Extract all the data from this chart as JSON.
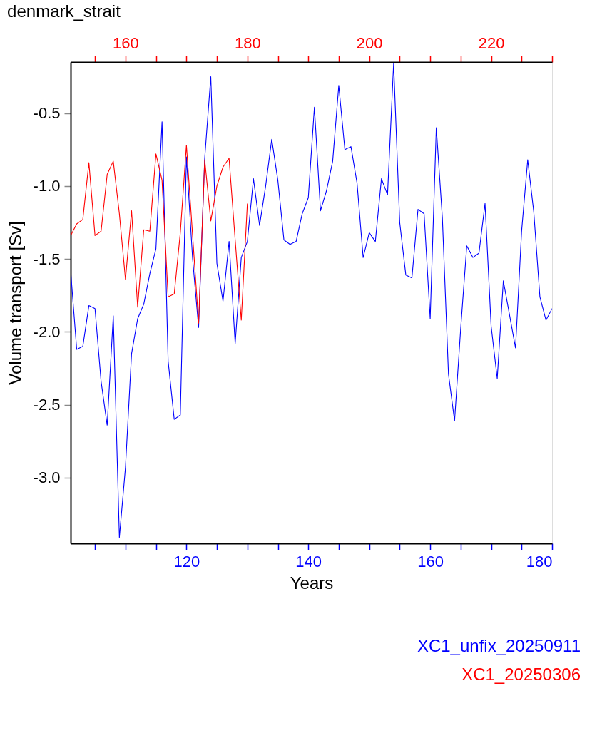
{
  "chart_data": {
    "type": "line",
    "title": "denmark_strait",
    "xlabel": "Years",
    "ylabel": "Volume transport [Sv]",
    "grid": false,
    "legend": "bottom right",
    "marker": "none",
    "line_style": "solid",
    "xlim": [
      101,
      180
    ],
    "xticks": [
      {
        "value": 105,
        "label": null
      },
      {
        "value": 110,
        "label": null
      },
      {
        "value": 115,
        "label": null
      },
      120,
      {
        "value": 125,
        "label": null
      },
      {
        "value": 130,
        "label": null
      },
      {
        "value": 135,
        "label": null
      },
      140,
      {
        "value": 145,
        "label": null
      },
      {
        "value": 150,
        "label": null
      },
      {
        "value": 155,
        "label": null
      },
      160,
      {
        "value": 165,
        "label": null
      },
      {
        "value": 170,
        "label": null
      },
      {
        "value": 175,
        "label": null
      },
      180
    ],
    "x2lim": [
      151,
      230
    ],
    "x2ticks": [
      {
        "value": 155,
        "label": null
      },
      160,
      {
        "value": 165,
        "label": null
      },
      {
        "value": 170,
        "label": null
      },
      {
        "value": 175,
        "label": null
      },
      180,
      {
        "value": 185,
        "label": null
      },
      {
        "value": 190,
        "label": null
      },
      {
        "value": 195,
        "label": null
      },
      200,
      {
        "value": 205,
        "label": null
      },
      {
        "value": 210,
        "label": null
      },
      {
        "value": 215,
        "label": null
      },
      220,
      {
        "value": 225,
        "label": null
      },
      {
        "value": 230,
        "label": null
      }
    ],
    "ylim": [
      -3.45,
      -0.15
    ],
    "yticks": [
      {
        "value": -3.0,
        "label": "-3.0"
      },
      {
        "value": -2.5,
        "label": "-2.5"
      },
      {
        "value": -2.0,
        "label": "-2.0"
      },
      {
        "value": -1.5,
        "label": "-1.5"
      },
      {
        "value": -1.0,
        "label": "-1.0"
      },
      {
        "value": -0.5,
        "label": "-0.5"
      }
    ],
    "series": [
      {
        "name": "XC1_unfix_20250911",
        "color": "#0000ff",
        "x": [
          101,
          102,
          103,
          104,
          105,
          106,
          107,
          108,
          109,
          110,
          111,
          112,
          113,
          114,
          115,
          116,
          117,
          118,
          119,
          120,
          121,
          122,
          123,
          124,
          125,
          126,
          127,
          128,
          129,
          130,
          131,
          132,
          133,
          134,
          135,
          136,
          137,
          138,
          139,
          140,
          141,
          142,
          143,
          144,
          145,
          146,
          147,
          148,
          149,
          150,
          151,
          152,
          153,
          154,
          155,
          156,
          157,
          158,
          159,
          160,
          161,
          162,
          163,
          164,
          165,
          166,
          167,
          168,
          169,
          170,
          171,
          172,
          173,
          174,
          175,
          176,
          177,
          178,
          179,
          180
        ],
        "values": [
          -1.58,
          -2.12,
          -2.1,
          -1.82,
          -1.84,
          -2.34,
          -2.64,
          -1.89,
          -3.41,
          -2.93,
          -2.15,
          -1.91,
          -1.81,
          -1.6,
          -1.43,
          -0.56,
          -2.2,
          -2.6,
          -2.57,
          -0.8,
          -1.49,
          -1.97,
          -0.81,
          -0.25,
          -1.53,
          -1.79,
          -1.38,
          -2.08,
          -1.49,
          -1.38,
          -0.95,
          -1.27,
          -1.0,
          -0.68,
          -0.96,
          -1.37,
          -1.4,
          -1.38,
          -1.19,
          -1.08,
          -0.46,
          -1.17,
          -1.03,
          -0.83,
          -0.31,
          -0.75,
          -0.73,
          -0.98,
          -1.49,
          -1.32,
          -1.38,
          -0.95,
          -1.06,
          -0.16,
          -1.25,
          -1.61,
          -1.63,
          -1.16,
          -1.19,
          -1.91,
          -0.6,
          -1.22,
          -2.29,
          -2.61,
          -1.98,
          -1.41,
          -1.49,
          -1.46,
          -1.12,
          -1.96,
          -2.32,
          -1.65,
          -1.88,
          -2.11,
          -1.31,
          -0.82,
          -1.18,
          -1.76,
          -1.92,
          -1.84
        ]
      },
      {
        "name": "XC1_20250306",
        "color": "#ff0000",
        "axis": "x2",
        "x": [
          151,
          152,
          153,
          154,
          155,
          156,
          157,
          158,
          159,
          160,
          161,
          162,
          163,
          164,
          165,
          166,
          167,
          168,
          169,
          170,
          171,
          172,
          173,
          174,
          175,
          176,
          177,
          178,
          179,
          180
        ],
        "values": [
          -1.34,
          -1.26,
          -1.23,
          -0.84,
          -1.34,
          -1.31,
          -0.92,
          -0.83,
          -1.19,
          -1.64,
          -1.17,
          -1.83,
          -1.3,
          -1.31,
          -0.78,
          -0.96,
          -1.76,
          -1.74,
          -1.32,
          -0.72,
          -1.33,
          -1.94,
          -0.82,
          -1.24,
          -1.0,
          -0.87,
          -0.81,
          -1.37,
          -1.92,
          -1.12
        ]
      }
    ]
  }
}
